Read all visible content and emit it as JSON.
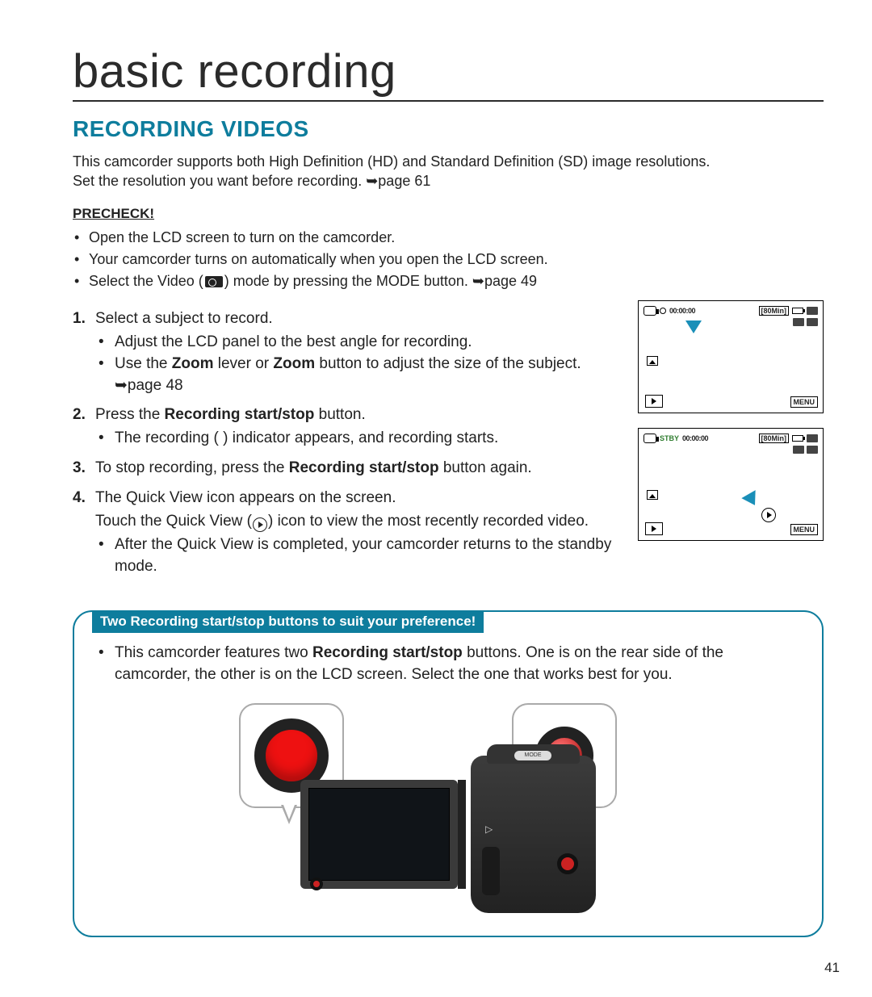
{
  "page_number": "41",
  "title": "basic recording",
  "section_heading": "RECORDING VIDEOS",
  "colors": {
    "accent": "#0e7d9d",
    "arrow": "#1a8fb8",
    "text": "#222222",
    "record_red": "#e11"
  },
  "intro": {
    "line1": "This camcorder supports both High Definition (HD) and Standard Definition (SD) image resolutions.",
    "line2_a": "Set the resolution you want before recording. ",
    "line2_pageref": "➥page 61"
  },
  "precheck": {
    "label": "PRECHECK!",
    "items": [
      "Open the LCD screen to turn on the camcorder.",
      "Your camcorder turns on automatically when you open the LCD screen."
    ],
    "item3_a": "Select the Video (",
    "item3_b": ") mode by pressing the MODE button. ",
    "item3_pageref": "➥page 49"
  },
  "steps": {
    "s1": {
      "text": "Select a subject to record.",
      "sub1": "Adjust the LCD panel to the best angle for recording.",
      "sub2_a": "Use the ",
      "sub2_b": " lever or ",
      "sub2_c": " button to adjust the size of the subject. ",
      "sub2_pageref": "➥page 48",
      "zoom_word": "Zoom"
    },
    "s2": {
      "text_a": "Press the ",
      "text_b": " button.",
      "bold": "Recording start/stop",
      "sub1": "The recording (  ) indicator appears, and recording starts."
    },
    "s3": {
      "text_a": "To stop recording, press the ",
      "text_b": " button again.",
      "bold": "Recording start/stop"
    },
    "s4": {
      "text": "The Quick View icon appears on the screen.",
      "note_a": "Touch the Quick View (",
      "note_b": ") icon to view the most recently recorded video.",
      "sub1": "After the Quick View is completed, your camcorder returns to the standby mode."
    }
  },
  "lcd": {
    "timecode": "00:00:00",
    "remaining": "[80Min]",
    "stby": "STBY",
    "menu": "MENU"
  },
  "callout": {
    "title": "Two Recording start/stop buttons to suit your preference!",
    "bullet_a": "This camcorder features two ",
    "bullet_bold": "Recording start/stop",
    "bullet_b": " buttons. One is on the rear side of the camcorder, the other is on the LCD screen. Select the one that works best for you."
  },
  "device": {
    "mode_label": "MODE"
  }
}
